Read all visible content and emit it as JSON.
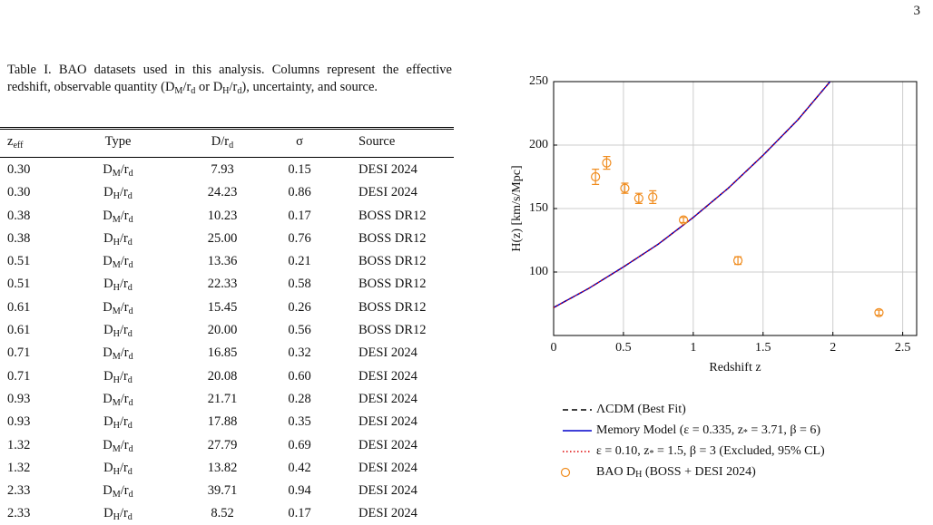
{
  "page_number": "3",
  "table": {
    "caption": "Table I. BAO datasets used in this analysis. Columns represent the effective redshift, observable quantity (D_M/r_d or D_H/r_d), uncertainty, and source.",
    "columns": [
      "z_eff",
      "Type",
      "D/r_d",
      "σ",
      "Source"
    ],
    "rows": [
      [
        "0.30",
        "D_M/r_d",
        "7.93",
        "0.15",
        "DESI 2024"
      ],
      [
        "0.30",
        "D_H/r_d",
        "24.23",
        "0.86",
        "DESI 2024"
      ],
      [
        "0.38",
        "D_M/r_d",
        "10.23",
        "0.17",
        "BOSS DR12"
      ],
      [
        "0.38",
        "D_H/r_d",
        "25.00",
        "0.76",
        "BOSS DR12"
      ],
      [
        "0.51",
        "D_M/r_d",
        "13.36",
        "0.21",
        "BOSS DR12"
      ],
      [
        "0.51",
        "D_H/r_d",
        "22.33",
        "0.58",
        "BOSS DR12"
      ],
      [
        "0.61",
        "D_M/r_d",
        "15.45",
        "0.26",
        "BOSS DR12"
      ],
      [
        "0.61",
        "D_H/r_d",
        "20.00",
        "0.56",
        "BOSS DR12"
      ],
      [
        "0.71",
        "D_M/r_d",
        "16.85",
        "0.32",
        "DESI 2024"
      ],
      [
        "0.71",
        "D_H/r_d",
        "20.08",
        "0.60",
        "DESI 2024"
      ],
      [
        "0.93",
        "D_M/r_d",
        "21.71",
        "0.28",
        "DESI 2024"
      ],
      [
        "0.93",
        "D_H/r_d",
        "17.88",
        "0.35",
        "DESI 2024"
      ],
      [
        "1.32",
        "D_M/r_d",
        "27.79",
        "0.69",
        "DESI 2024"
      ],
      [
        "1.32",
        "D_H/r_d",
        "13.82",
        "0.42",
        "DESI 2024"
      ],
      [
        "2.33",
        "D_M/r_d",
        "39.71",
        "0.94",
        "DESI 2024"
      ],
      [
        "2.33",
        "D_H/r_d",
        "8.52",
        "0.17",
        "DESI 2024"
      ]
    ]
  },
  "chart_data": {
    "type": "line",
    "xlabel": "Redshift z",
    "ylabel": "H(z) [km/s/Mpc]",
    "xlim": [
      0,
      2.6
    ],
    "ylim": [
      50,
      250
    ],
    "xticks": [
      0,
      0.5,
      1,
      1.5,
      2,
      2.5
    ],
    "yticks": [
      100,
      150,
      200,
      250
    ],
    "grid": true,
    "series": [
      {
        "name": "ΛCDM (Best Fit)",
        "color": "#000000",
        "dash": "dashed",
        "x": [
          0,
          0.25,
          0.5,
          0.75,
          1.0,
          1.25,
          1.5,
          1.75,
          1.98
        ],
        "values": [
          72,
          87,
          104,
          122,
          143,
          166,
          192,
          220,
          250
        ]
      },
      {
        "name": "Memory Model (ε = 0.335, z_* = 3.71, β = 6)",
        "color": "#0000cc",
        "dash": "solid",
        "x": [
          0,
          0.25,
          0.5,
          0.75,
          1.0,
          1.25,
          1.5,
          1.75,
          1.98
        ],
        "values": [
          72,
          87,
          104,
          122,
          143,
          166,
          192,
          220,
          250
        ]
      },
      {
        "name": "ε = 0.10, z_* = 1.5, β = 3 (Excluded, 95% CL)",
        "color": "#dd0000",
        "dash": "dotted",
        "x": [
          0,
          0.25,
          0.5,
          0.75,
          1.0,
          1.25,
          1.5,
          1.75,
          1.98
        ],
        "values": [
          72,
          87,
          104,
          122,
          143,
          166,
          192,
          220,
          250
        ]
      },
      {
        "name": "BAO D_H (BOSS + DESI 2024)",
        "color": "#f08c1e",
        "marker": "circle",
        "x": [
          0.3,
          0.38,
          0.51,
          0.61,
          0.71,
          0.93,
          1.32,
          2.33
        ],
        "values": [
          175,
          186,
          166,
          158,
          159,
          141,
          109,
          68
        ],
        "errors": [
          6,
          5,
          4,
          4,
          5,
          2,
          3,
          2
        ]
      }
    ]
  }
}
